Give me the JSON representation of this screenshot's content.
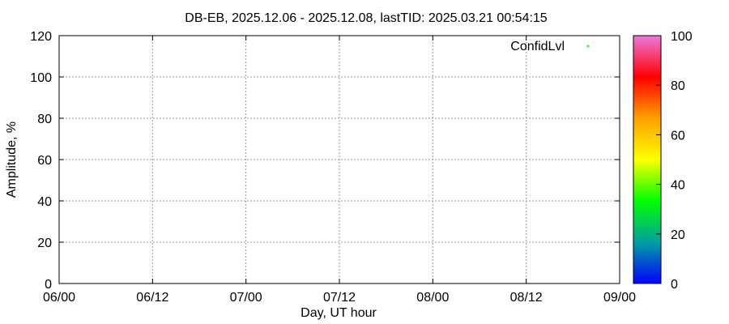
{
  "chart_data": {
    "type": "scatter",
    "title": "DB-EB, 2025.12.06 - 2025.12.08, lastTID: 2025.03.21 00:54:15",
    "xlabel": "Day, UT hour",
    "ylabel": "Amplitude, %",
    "x_ticks": [
      "06/00",
      "06/12",
      "07/00",
      "07/12",
      "08/00",
      "08/12",
      "09/00"
    ],
    "y_ticks": [
      "0",
      "20",
      "40",
      "60",
      "80",
      "100",
      "120"
    ],
    "ylim": [
      0,
      120
    ],
    "grid": true,
    "legend": {
      "placement": "top-right",
      "entries": [
        {
          "name": "ConfidLvl",
          "color": "#00ff00"
        }
      ]
    },
    "series": [
      {
        "name": "ConfidLvl",
        "points": []
      }
    ],
    "colorbar": {
      "range": [
        0,
        100
      ],
      "ticks": [
        "0",
        "20",
        "40",
        "60",
        "80",
        "100"
      ],
      "colors": [
        "#0000ff",
        "#00a0a0",
        "#00ff00",
        "#ffff00",
        "#ffa000",
        "#ff0000",
        "#ee77dd"
      ]
    }
  }
}
